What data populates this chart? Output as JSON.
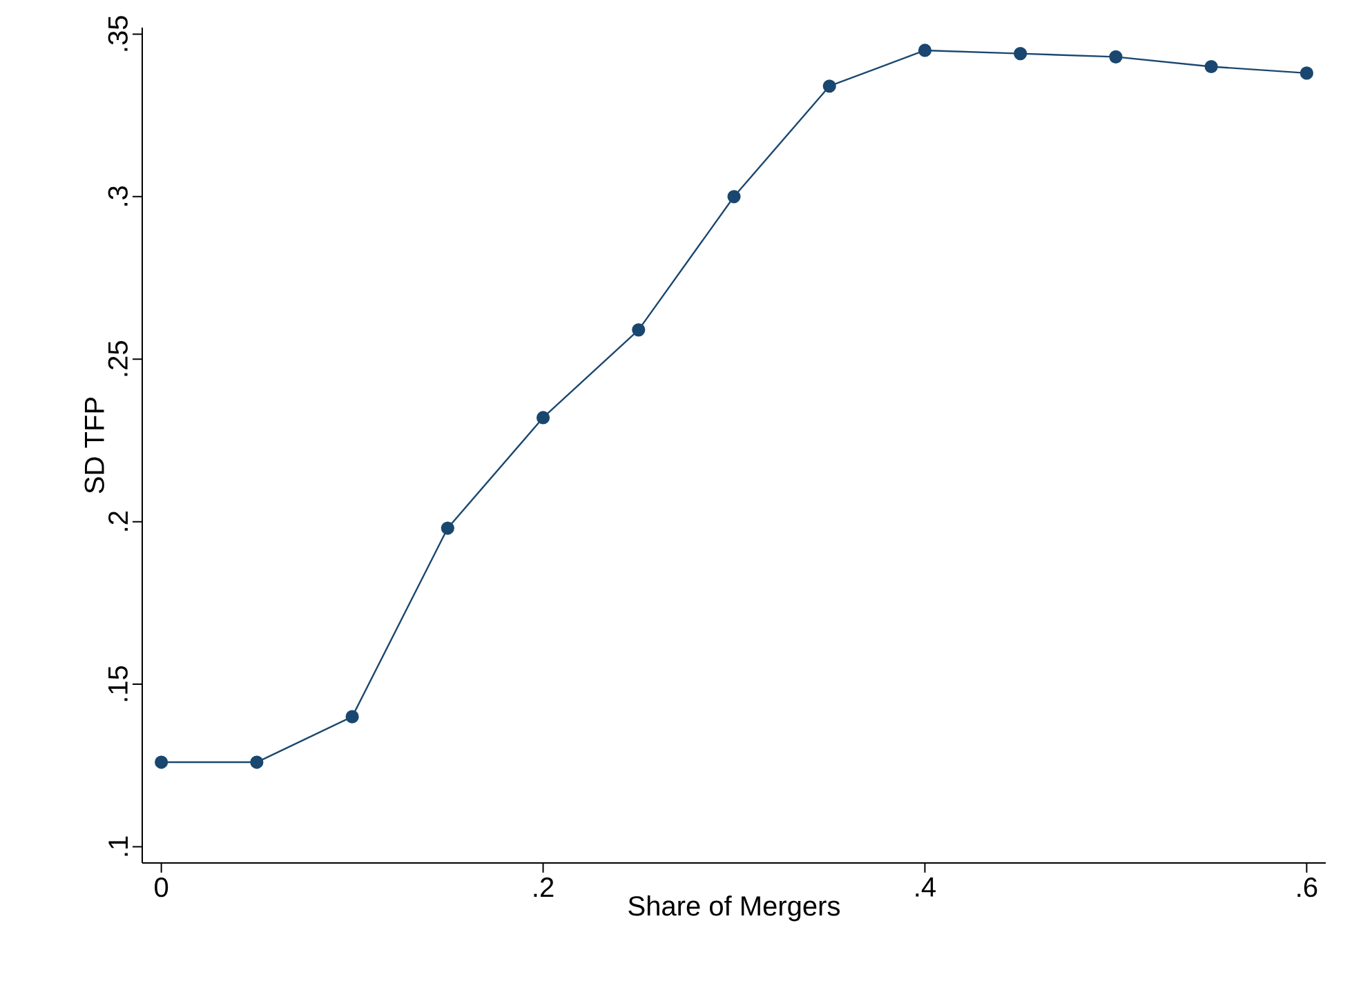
{
  "chart_data": {
    "type": "line",
    "xlabel": "Share of Mergers",
    "ylabel": "SD TFP",
    "x": [
      0,
      0.05,
      0.1,
      0.15,
      0.2,
      0.25,
      0.3,
      0.35,
      0.4,
      0.45,
      0.5,
      0.55,
      0.6
    ],
    "series": [
      {
        "color": "#1a476f",
        "values": [
          0.126,
          0.126,
          0.14,
          0.198,
          0.232,
          0.259,
          0.3,
          0.334,
          0.345,
          0.344,
          0.343,
          0.34,
          0.338
        ]
      }
    ],
    "xlim": [
      -0.01,
      0.61
    ],
    "ylim": [
      0.095,
      0.352
    ],
    "xticks": [
      {
        "value": 0,
        "label": "0"
      },
      {
        "value": 0.2,
        "label": ".2"
      },
      {
        "value": 0.4,
        "label": ".4"
      },
      {
        "value": 0.6,
        "label": ".6"
      }
    ],
    "yticks": [
      {
        "value": 0.1,
        "label": ".1"
      },
      {
        "value": 0.15,
        "label": ".15"
      },
      {
        "value": 0.2,
        "label": ".2"
      },
      {
        "value": 0.25,
        "label": ".25"
      },
      {
        "value": 0.3,
        "label": ".3"
      },
      {
        "value": 0.35,
        "label": ".35"
      }
    ],
    "grid": false,
    "marker": "circle",
    "line_style": "solid"
  }
}
